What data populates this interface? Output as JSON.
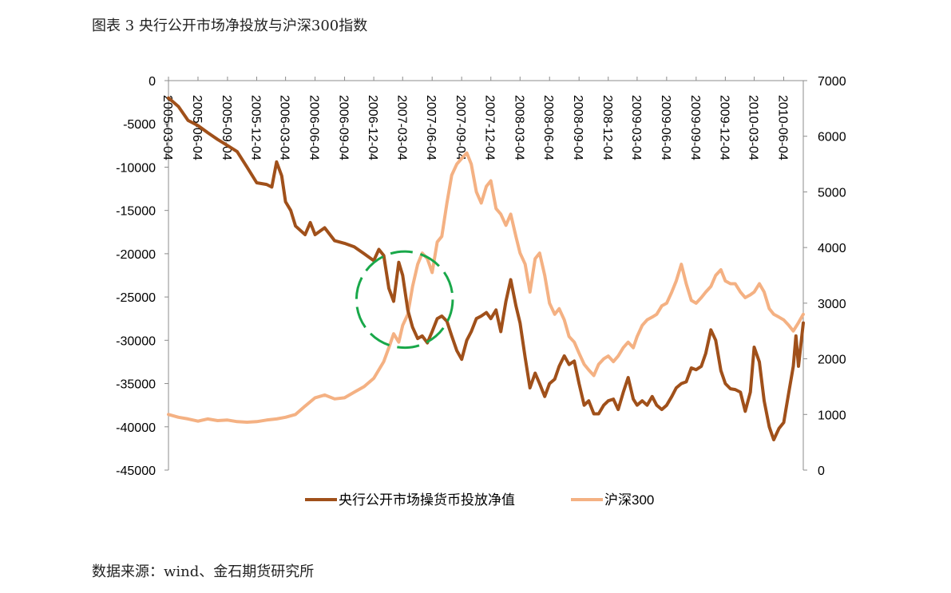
{
  "figure": {
    "title": "图表 3 央行公开市场净投放与沪深300指数",
    "source": "数据来源：wind、金石期货研究所"
  },
  "chart_data": {
    "type": "line",
    "title": "",
    "xlabel": "",
    "ylabel_left": "",
    "ylabel_right": "",
    "x_ticks": [
      "2005-03-04",
      "2005-06-04",
      "2005-09-04",
      "2005-12-04",
      "2006-03-04",
      "2006-06-04",
      "2006-09-04",
      "2006-12-04",
      "2007-03-04",
      "2007-06-04",
      "2007-09-04",
      "2007-12-04",
      "2008-03-04",
      "2008-06-04",
      "2008-09-04",
      "2008-12-04",
      "2009-03-04",
      "2009-06-04",
      "2009-09-04",
      "2009-12-04",
      "2010-03-04",
      "2010-06-04"
    ],
    "x_range": [
      "2005-03-04",
      "2010-08-04"
    ],
    "y_left": {
      "range": [
        -45000,
        0
      ],
      "ticks": [
        0,
        -5000,
        -10000,
        -15000,
        -20000,
        -25000,
        -30000,
        -35000,
        -40000,
        -45000
      ]
    },
    "y_right": {
      "range": [
        0,
        7000
      ],
      "ticks": [
        7000,
        6000,
        5000,
        4000,
        3000,
        2000,
        1000,
        0
      ]
    },
    "legend_position": "bottom",
    "series": [
      {
        "name": "央行公开市场操货币投放净值",
        "axis": "left",
        "color": "#a0501a",
        "points": [
          [
            "2005-03-04",
            -2000
          ],
          [
            "2005-04-04",
            -3000
          ],
          [
            "2005-05-04",
            -4600
          ],
          [
            "2005-06-04",
            -5200
          ],
          [
            "2005-07-04",
            -6000
          ],
          [
            "2005-08-04",
            -6800
          ],
          [
            "2005-09-04",
            -7500
          ],
          [
            "2005-10-04",
            -8200
          ],
          [
            "2005-11-04",
            -10000
          ],
          [
            "2005-12-04",
            -11800
          ],
          [
            "2006-01-04",
            -12000
          ],
          [
            "2006-01-20",
            -12300
          ],
          [
            "2006-02-04",
            -9400
          ],
          [
            "2006-02-20",
            -11000
          ],
          [
            "2006-03-04",
            -14000
          ],
          [
            "2006-03-20",
            -15000
          ],
          [
            "2006-04-04",
            -16800
          ],
          [
            "2006-05-04",
            -17800
          ],
          [
            "2006-05-20",
            -16400
          ],
          [
            "2006-06-04",
            -17800
          ],
          [
            "2006-07-04",
            -17000
          ],
          [
            "2006-08-04",
            -18500
          ],
          [
            "2006-09-04",
            -18800
          ],
          [
            "2006-10-04",
            -19200
          ],
          [
            "2006-11-04",
            -20000
          ],
          [
            "2006-12-04",
            -20800
          ],
          [
            "2006-12-20",
            -19500
          ],
          [
            "2007-01-04",
            -20200
          ],
          [
            "2007-01-20",
            -24000
          ],
          [
            "2007-02-04",
            -25500
          ],
          [
            "2007-02-20",
            -21000
          ],
          [
            "2007-03-04",
            -22500
          ],
          [
            "2007-03-20",
            -26500
          ],
          [
            "2007-04-04",
            -28500
          ],
          [
            "2007-04-20",
            -29800
          ],
          [
            "2007-05-04",
            -29500
          ],
          [
            "2007-05-20",
            -30300
          ],
          [
            "2007-06-04",
            -29000
          ],
          [
            "2007-06-20",
            -27500
          ],
          [
            "2007-07-04",
            -27200
          ],
          [
            "2007-07-20",
            -27800
          ],
          [
            "2007-08-04",
            -29500
          ],
          [
            "2007-08-20",
            -31200
          ],
          [
            "2007-09-04",
            -32200
          ],
          [
            "2007-09-20",
            -30000
          ],
          [
            "2007-10-04",
            -29000
          ],
          [
            "2007-10-20",
            -27500
          ],
          [
            "2007-11-04",
            -27200
          ],
          [
            "2007-11-20",
            -26800
          ],
          [
            "2007-12-04",
            -27500
          ],
          [
            "2007-12-20",
            -26500
          ],
          [
            "2008-01-04",
            -29000
          ],
          [
            "2008-01-20",
            -25500
          ],
          [
            "2008-02-04",
            -23000
          ],
          [
            "2008-02-20",
            -26000
          ],
          [
            "2008-03-04",
            -28000
          ],
          [
            "2008-03-20",
            -32000
          ],
          [
            "2008-04-04",
            -35500
          ],
          [
            "2008-04-20",
            -33800
          ],
          [
            "2008-05-04",
            -35000
          ],
          [
            "2008-05-20",
            -36500
          ],
          [
            "2008-06-04",
            -35000
          ],
          [
            "2008-06-20",
            -34500
          ],
          [
            "2008-07-04",
            -33000
          ],
          [
            "2008-07-20",
            -31800
          ],
          [
            "2008-08-04",
            -32800
          ],
          [
            "2008-08-20",
            -32400
          ],
          [
            "2008-09-04",
            -35000
          ],
          [
            "2008-09-20",
            -37500
          ],
          [
            "2008-10-04",
            -37000
          ],
          [
            "2008-10-20",
            -38500
          ],
          [
            "2008-11-04",
            -38500
          ],
          [
            "2008-11-20",
            -37500
          ],
          [
            "2008-12-04",
            -37000
          ],
          [
            "2008-12-20",
            -36800
          ],
          [
            "2009-01-04",
            -38000
          ],
          [
            "2009-01-20",
            -36000
          ],
          [
            "2009-02-04",
            -34300
          ],
          [
            "2009-02-20",
            -36800
          ],
          [
            "2009-03-04",
            -37500
          ],
          [
            "2009-03-20",
            -37000
          ],
          [
            "2009-04-04",
            -37500
          ],
          [
            "2009-04-20",
            -36500
          ],
          [
            "2009-05-04",
            -37500
          ],
          [
            "2009-05-20",
            -38000
          ],
          [
            "2009-06-04",
            -37500
          ],
          [
            "2009-06-20",
            -36500
          ],
          [
            "2009-07-04",
            -35500
          ],
          [
            "2009-07-20",
            -35000
          ],
          [
            "2009-08-04",
            -34800
          ],
          [
            "2009-08-20",
            -33200
          ],
          [
            "2009-09-04",
            -33400
          ],
          [
            "2009-09-20",
            -33000
          ],
          [
            "2009-10-04",
            -31500
          ],
          [
            "2009-10-20",
            -28800
          ],
          [
            "2009-11-04",
            -30000
          ],
          [
            "2009-11-20",
            -33500
          ],
          [
            "2009-12-04",
            -35000
          ],
          [
            "2009-12-20",
            -35600
          ],
          [
            "2010-01-04",
            -35700
          ],
          [
            "2010-01-20",
            -36000
          ],
          [
            "2010-02-04",
            -38200
          ],
          [
            "2010-02-20",
            -36000
          ],
          [
            "2010-03-04",
            -30800
          ],
          [
            "2010-03-20",
            -32500
          ],
          [
            "2010-04-04",
            -37000
          ],
          [
            "2010-04-20",
            -40000
          ],
          [
            "2010-05-04",
            -41500
          ],
          [
            "2010-05-20",
            -40200
          ],
          [
            "2010-06-04",
            -39500
          ],
          [
            "2010-06-20",
            -36000
          ],
          [
            "2010-07-04",
            -33000
          ],
          [
            "2010-07-12",
            -29500
          ],
          [
            "2010-07-20",
            -33000
          ],
          [
            "2010-08-04",
            -28000
          ]
        ]
      },
      {
        "name": "沪深300",
        "axis": "right",
        "color": "#f4b183",
        "points": [
          [
            "2005-03-04",
            1000
          ],
          [
            "2005-04-04",
            950
          ],
          [
            "2005-05-04",
            920
          ],
          [
            "2005-06-04",
            880
          ],
          [
            "2005-07-04",
            920
          ],
          [
            "2005-08-04",
            890
          ],
          [
            "2005-09-04",
            900
          ],
          [
            "2005-10-04",
            870
          ],
          [
            "2005-11-04",
            860
          ],
          [
            "2005-12-04",
            870
          ],
          [
            "2006-01-04",
            900
          ],
          [
            "2006-02-04",
            920
          ],
          [
            "2006-03-04",
            950
          ],
          [
            "2006-04-04",
            1000
          ],
          [
            "2006-05-04",
            1150
          ],
          [
            "2006-06-04",
            1300
          ],
          [
            "2006-07-04",
            1350
          ],
          [
            "2006-08-04",
            1280
          ],
          [
            "2006-09-04",
            1300
          ],
          [
            "2006-10-04",
            1400
          ],
          [
            "2006-11-04",
            1500
          ],
          [
            "2006-12-04",
            1650
          ],
          [
            "2007-01-04",
            1950
          ],
          [
            "2007-01-20",
            2200
          ],
          [
            "2007-02-04",
            2450
          ],
          [
            "2007-02-20",
            2300
          ],
          [
            "2007-03-04",
            2600
          ],
          [
            "2007-03-20",
            2800
          ],
          [
            "2007-04-04",
            3300
          ],
          [
            "2007-04-20",
            3700
          ],
          [
            "2007-05-04",
            3900
          ],
          [
            "2007-05-20",
            3800
          ],
          [
            "2007-06-04",
            3550
          ],
          [
            "2007-06-20",
            4100
          ],
          [
            "2007-07-04",
            4200
          ],
          [
            "2007-07-20",
            4800
          ],
          [
            "2007-08-04",
            5300
          ],
          [
            "2007-08-20",
            5500
          ],
          [
            "2007-09-04",
            5600
          ],
          [
            "2007-09-20",
            5700
          ],
          [
            "2007-10-04",
            5500
          ],
          [
            "2007-10-20",
            5000
          ],
          [
            "2007-11-04",
            4800
          ],
          [
            "2007-11-20",
            5100
          ],
          [
            "2007-12-04",
            5200
          ],
          [
            "2007-12-20",
            4700
          ],
          [
            "2008-01-04",
            4600
          ],
          [
            "2008-01-20",
            4400
          ],
          [
            "2008-02-04",
            4600
          ],
          [
            "2008-02-20",
            4200
          ],
          [
            "2008-03-04",
            3900
          ],
          [
            "2008-03-20",
            3700
          ],
          [
            "2008-04-04",
            3200
          ],
          [
            "2008-04-20",
            3800
          ],
          [
            "2008-05-04",
            3900
          ],
          [
            "2008-05-20",
            3500
          ],
          [
            "2008-06-04",
            3000
          ],
          [
            "2008-06-20",
            2800
          ],
          [
            "2008-07-04",
            2900
          ],
          [
            "2008-07-20",
            2700
          ],
          [
            "2008-08-04",
            2400
          ],
          [
            "2008-08-20",
            2300
          ],
          [
            "2008-09-04",
            2100
          ],
          [
            "2008-09-20",
            1900
          ],
          [
            "2008-10-04",
            1800
          ],
          [
            "2008-10-20",
            1700
          ],
          [
            "2008-11-04",
            1900
          ],
          [
            "2008-11-20",
            2000
          ],
          [
            "2008-12-04",
            2050
          ],
          [
            "2008-12-20",
            1950
          ],
          [
            "2009-01-04",
            2050
          ],
          [
            "2009-01-20",
            2200
          ],
          [
            "2009-02-04",
            2300
          ],
          [
            "2009-02-20",
            2200
          ],
          [
            "2009-03-04",
            2400
          ],
          [
            "2009-03-20",
            2600
          ],
          [
            "2009-04-04",
            2700
          ],
          [
            "2009-04-20",
            2750
          ],
          [
            "2009-05-04",
            2800
          ],
          [
            "2009-05-20",
            2950
          ],
          [
            "2009-06-04",
            3000
          ],
          [
            "2009-06-20",
            3200
          ],
          [
            "2009-07-04",
            3400
          ],
          [
            "2009-07-20",
            3700
          ],
          [
            "2009-08-04",
            3350
          ],
          [
            "2009-08-20",
            3050
          ],
          [
            "2009-09-04",
            3000
          ],
          [
            "2009-09-20",
            3100
          ],
          [
            "2009-10-04",
            3200
          ],
          [
            "2009-10-20",
            3300
          ],
          [
            "2009-11-04",
            3500
          ],
          [
            "2009-11-20",
            3600
          ],
          [
            "2009-12-04",
            3400
          ],
          [
            "2009-12-20",
            3350
          ],
          [
            "2010-01-04",
            3350
          ],
          [
            "2010-01-20",
            3200
          ],
          [
            "2010-02-04",
            3100
          ],
          [
            "2010-02-20",
            3150
          ],
          [
            "2010-03-04",
            3200
          ],
          [
            "2010-03-20",
            3350
          ],
          [
            "2010-04-04",
            3200
          ],
          [
            "2010-04-20",
            2900
          ],
          [
            "2010-05-04",
            2800
          ],
          [
            "2010-05-20",
            2750
          ],
          [
            "2010-06-04",
            2700
          ],
          [
            "2010-06-20",
            2600
          ],
          [
            "2010-07-04",
            2500
          ],
          [
            "2010-07-20",
            2650
          ],
          [
            "2010-08-04",
            2800
          ]
        ]
      }
    ],
    "annotation": {
      "shape": "dashed-circle",
      "color": "#19a84a",
      "center": [
        "2007-03-10",
        -25300
      ],
      "radius_days": 150
    }
  }
}
